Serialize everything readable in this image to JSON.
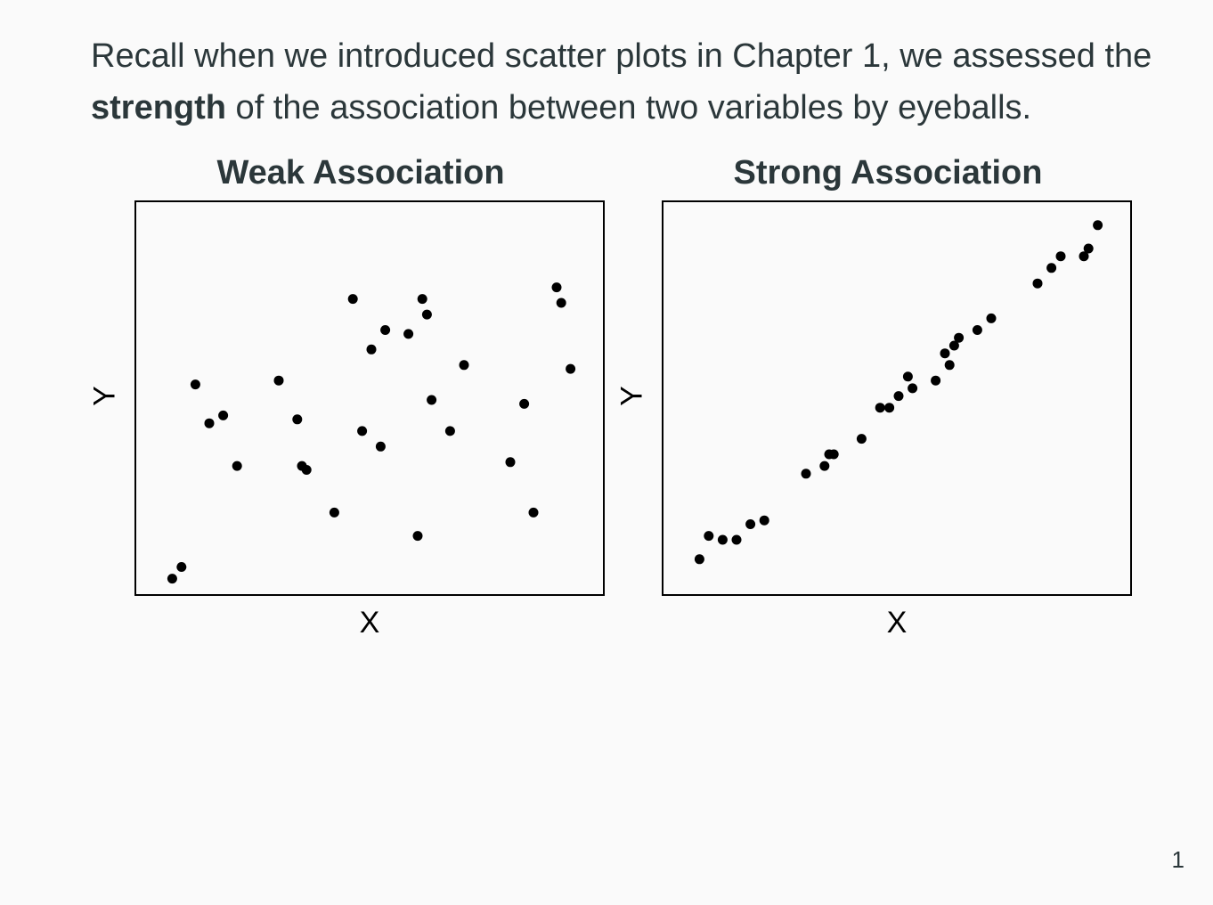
{
  "intro": {
    "part1": "Recall when we introduced scatter plots in Chapter 1, we assessed the ",
    "bold": "strength",
    "part2": " of the association between two variables by eyeballs."
  },
  "page_number": "1",
  "chart_data": [
    {
      "type": "scatter",
      "title": "Weak Association",
      "xlabel": "X",
      "ylabel": "Y",
      "xlim": [
        0,
        100
      ],
      "ylim": [
        0,
        100
      ],
      "grid": false,
      "x": [
        7,
        9,
        12,
        15,
        18,
        21,
        30,
        34,
        35,
        36,
        42,
        46,
        48,
        50,
        52,
        53,
        58,
        60,
        61,
        62,
        63,
        67,
        70,
        80,
        83,
        85,
        90,
        91,
        93
      ],
      "y": [
        4,
        7,
        54,
        44,
        46,
        33,
        55,
        45,
        33,
        32,
        21,
        76,
        42,
        63,
        38,
        68,
        67,
        15,
        76,
        72,
        50,
        42,
        59,
        34,
        49,
        21,
        79,
        75,
        58
      ]
    },
    {
      "type": "scatter",
      "title": "Strong Association",
      "xlabel": "X",
      "ylabel": "Y",
      "xlim": [
        0,
        100
      ],
      "ylim": [
        0,
        100
      ],
      "grid": false,
      "x": [
        7,
        9,
        12,
        15,
        18,
        21,
        30,
        34,
        35,
        36,
        42,
        46,
        48,
        50,
        52,
        53,
        58,
        60,
        61,
        62,
        63,
        67,
        70,
        80,
        83,
        85,
        90,
        91,
        93
      ],
      "y": [
        9,
        15,
        14,
        14,
        18,
        19,
        31,
        33,
        36,
        36,
        40,
        48,
        48,
        51,
        56,
        53,
        55,
        62,
        59,
        64,
        66,
        68,
        71,
        80,
        84,
        87,
        87,
        89,
        95
      ]
    }
  ]
}
